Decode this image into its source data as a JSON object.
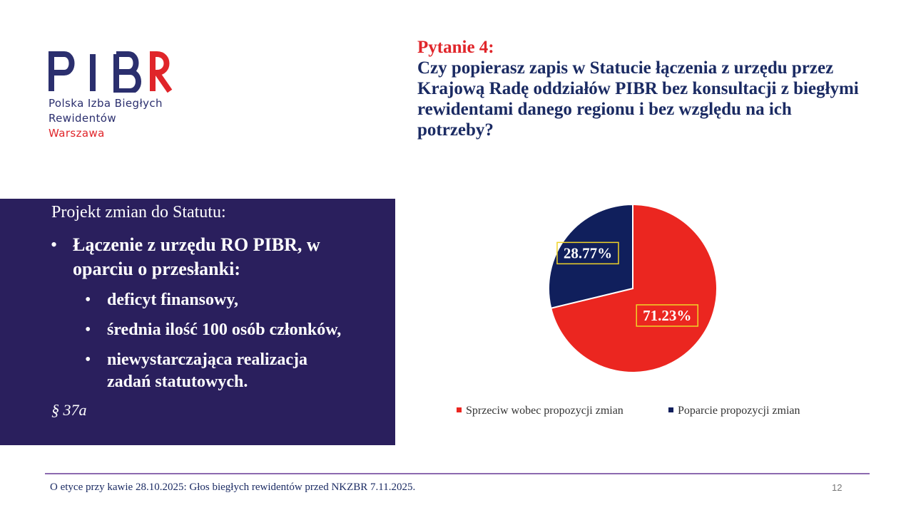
{
  "logo": {
    "letters": "PIBR",
    "line1": "Polska Izba Biegłych",
    "line2": "Rewidentów",
    "line3": "Warszawa",
    "colors": {
      "navy": "#2b2f6e",
      "red": "#e0252a"
    }
  },
  "question": {
    "label": "Pytanie 4:",
    "text": "Czy popierasz zapis w Statucie łączenia z urzędu przez Krajową Radę oddziałów PIBR bez konsultacji z biegłymi rewidentami danego regionu i bez względu na ich potrzeby?"
  },
  "panel": {
    "title": "Projekt zmian do Statutu:",
    "bullet_main": "Łączenie z urzędu RO PIBR, w oparciu o przesłanki:",
    "sub_bullets": [
      "deficyt finansowy,",
      "średnia ilość 100 osób członków,",
      "niewystarczająca realizacja zadań statutowych."
    ],
    "reference": "§ 37a",
    "bullet_glyph": "•",
    "background": "#2a1f5d"
  },
  "chart_data": {
    "type": "pie",
    "series": [
      {
        "name": "Sprzeciw wobec propozycji zmian",
        "value": 71.23,
        "label": "71.23%",
        "color": "#eb2620"
      },
      {
        "name": "Poparcie propozycji zmian",
        "value": 28.77,
        "label": "28.77%",
        "color": "#101f5c"
      }
    ],
    "start_angle_deg": 0,
    "direction": "clockwise",
    "legend_position": "bottom",
    "label_border_color": "#f0d428"
  },
  "footer": {
    "text": "O etyce przy kawie 28.10.2025: Głos biegłych rewidentów przed NKZBR 7.11.2025.",
    "page_number": "12"
  }
}
